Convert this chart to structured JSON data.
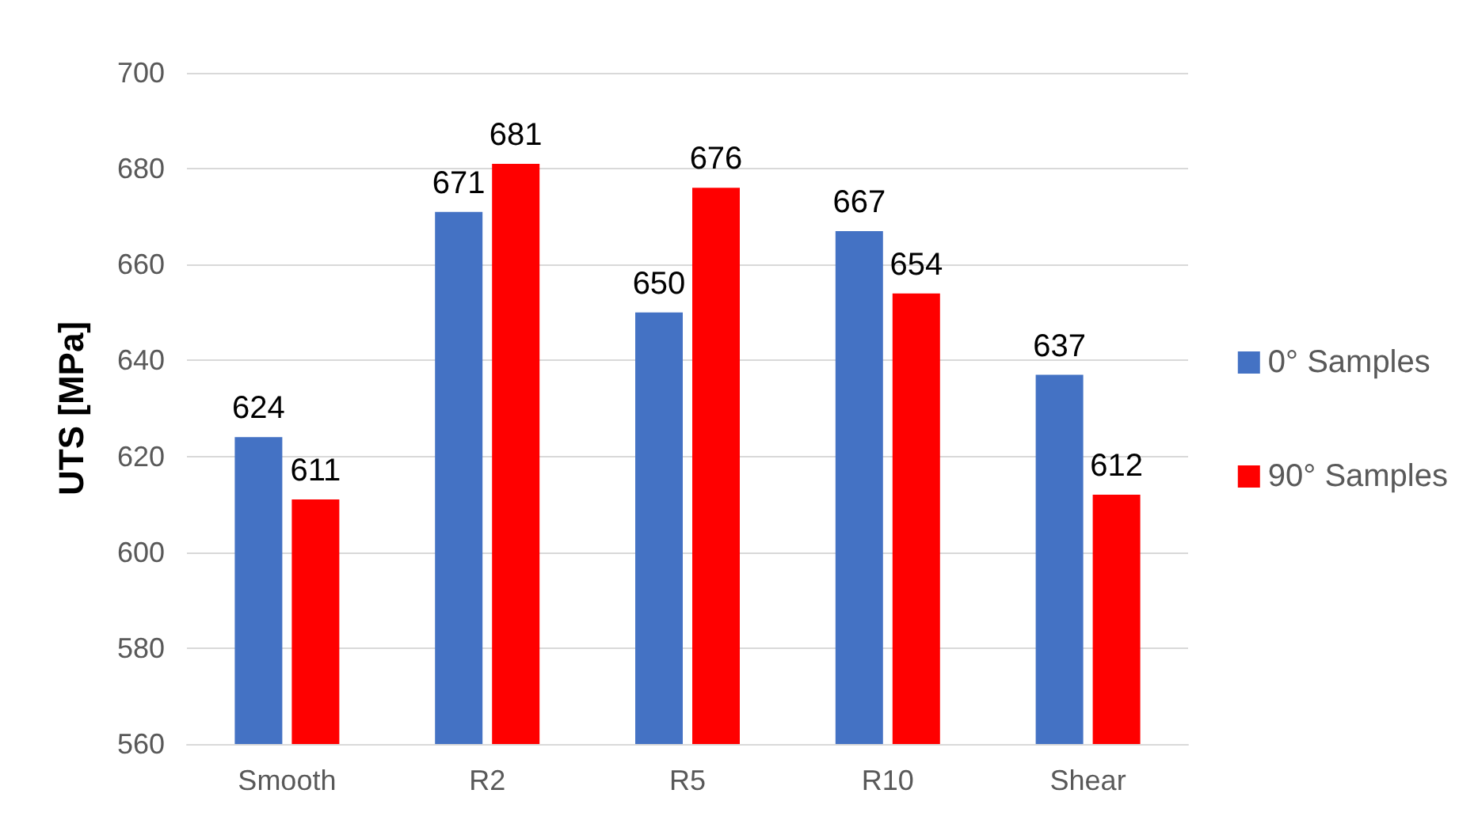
{
  "chart_data": {
    "type": "bar",
    "ylabel": "UTS [MPa]",
    "categories": [
      "Smooth",
      "R2",
      "R5",
      "R10",
      "Shear"
    ],
    "series": [
      {
        "name": "0° Samples",
        "color": "#4472c4",
        "values": [
          624,
          671,
          650,
          667,
          637
        ]
      },
      {
        "name": "90° Samples",
        "color": "#ff0000",
        "values": [
          611,
          681,
          676,
          654,
          612
        ]
      }
    ],
    "ylim": [
      560,
      700
    ],
    "yticks": [
      560,
      580,
      600,
      620,
      640,
      660,
      680,
      700
    ],
    "grid": "y",
    "legend": "right",
    "data_labels": true
  }
}
